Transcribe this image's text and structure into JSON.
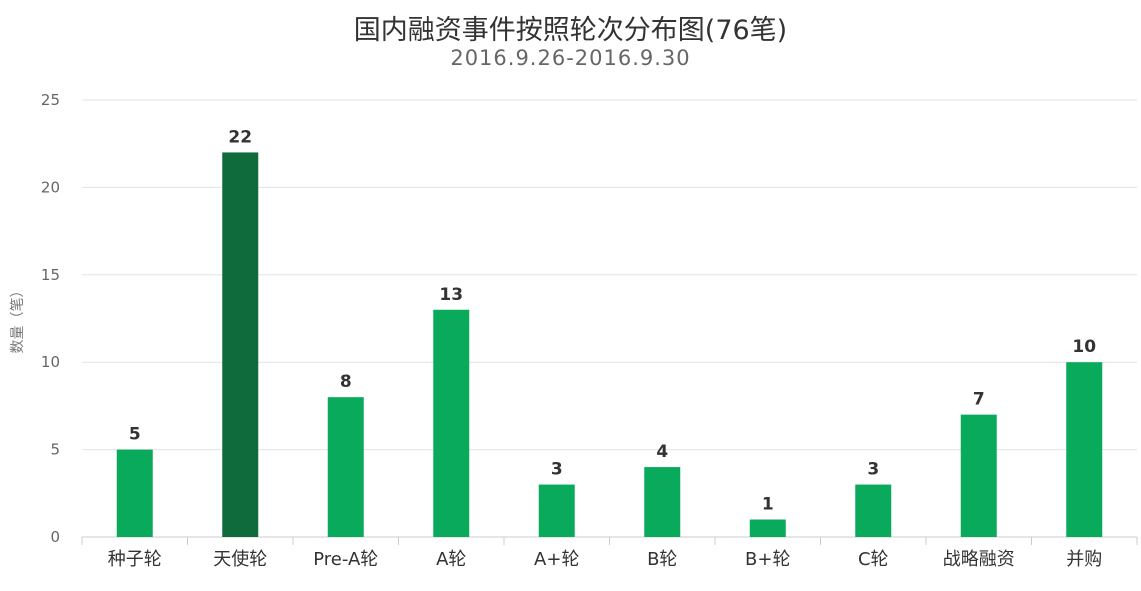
{
  "chart_data": {
    "type": "bar",
    "title": "国内融资事件按照轮次分布图(76笔)",
    "subtitle": "2016.9.26-2016.9.30",
    "ylabel": "数量（笔）",
    "xlabel": "",
    "ylim": [
      0,
      25
    ],
    "yticks": [
      0,
      5,
      10,
      15,
      20,
      25
    ],
    "grid": true,
    "categories": [
      "种子轮",
      "天使轮",
      "Pre-A轮",
      "A轮",
      "A+轮",
      "B轮",
      "B+轮",
      "C轮",
      "战略融资",
      "并购"
    ],
    "values": [
      5,
      22,
      8,
      13,
      3,
      4,
      1,
      3,
      7,
      10
    ],
    "data_labels": [
      "5",
      "22",
      "8",
      "13",
      "3",
      "4",
      "1",
      "3",
      "7",
      "10"
    ],
    "highlight_index": 1,
    "colors": {
      "bar": "#0aaa5d",
      "highlight": "#0f6b3b",
      "grid": "#e3e3e3",
      "axis": "#cccccc"
    }
  }
}
